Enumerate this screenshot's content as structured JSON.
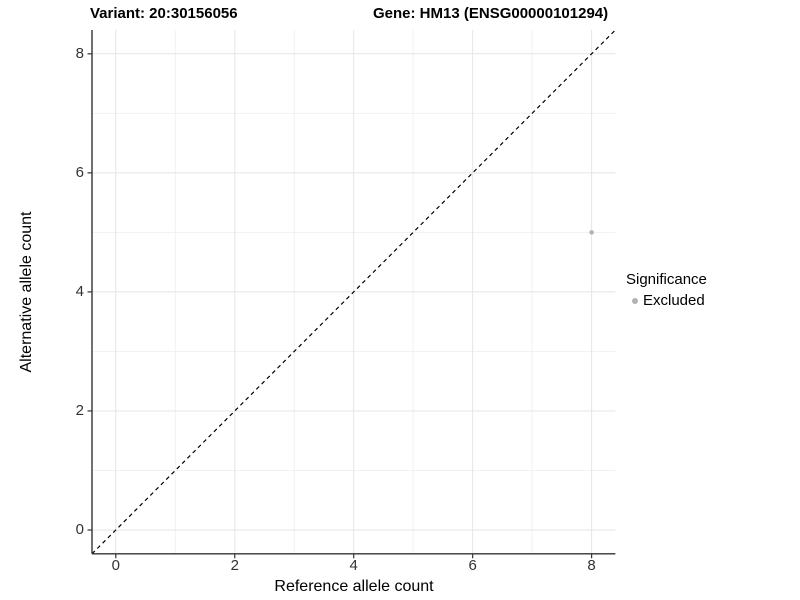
{
  "header": {
    "variant_title": "Variant: 20:30156056",
    "gene_title": "Gene: HM13 (ENSG00000101294)"
  },
  "chart_data": {
    "type": "scatter",
    "xlabel": "Reference allele count",
    "ylabel": "Alternative allele count",
    "xlim": [
      -0.4,
      8.4
    ],
    "ylim": [
      -0.4,
      8.4
    ],
    "x_ticks": [
      0,
      2,
      4,
      6,
      8
    ],
    "y_ticks": [
      0,
      2,
      4,
      6,
      8
    ],
    "x_minor_ticks": [
      1,
      3,
      5,
      7
    ],
    "y_minor_ticks": [
      1,
      3,
      5,
      7
    ],
    "grid": true,
    "points": [
      {
        "x": 8,
        "y": 5,
        "significance": "Excluded"
      }
    ],
    "identity_line": {
      "type": "dashed",
      "from": -0.4,
      "to": 8.4
    },
    "legend": {
      "title": "Significance",
      "position": "right",
      "entries": [
        {
          "label": "Excluded",
          "color": "#b3b3b3"
        }
      ]
    }
  },
  "colors": {
    "background": "#ffffff",
    "grid_major": "#e5e5e5",
    "grid_minor": "#f1f1f1",
    "axis_line": "#333333",
    "tick_text": "#333333",
    "title_text": "#000000",
    "point": "#b3b3b3",
    "identity_line": "#000000"
  }
}
